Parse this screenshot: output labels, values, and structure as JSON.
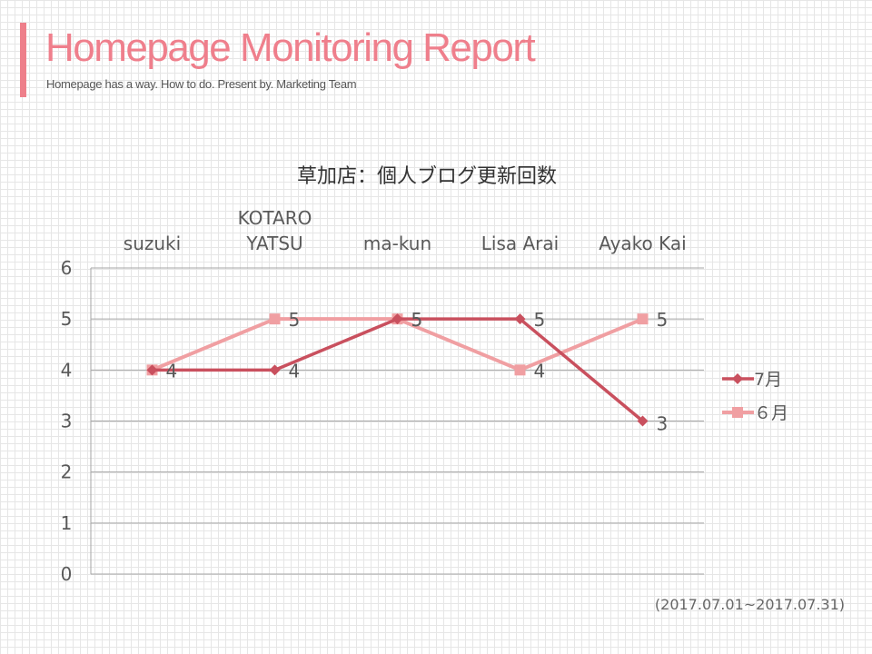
{
  "header": {
    "title": "Homepage Monitoring Report",
    "subtitle": "Homepage has a way. How to do. Present by. Marketing Team"
  },
  "footer": {
    "date_range": "(2017.07.01~2017.07.31)"
  },
  "colors": {
    "accent": "#ee7f8a",
    "series_7": "#c9505e",
    "series_6": "#f09fa2"
  },
  "chart_data": {
    "type": "line",
    "title": "草加店：個人ブログ更新回数",
    "categories": [
      "suzuki",
      "KOTARO YATSU",
      "ma-kun",
      "Lisa Arai",
      "Ayako Kai"
    ],
    "category_lines": [
      [
        "suzuki"
      ],
      [
        "KOTARO",
        "YATSU"
      ],
      [
        "ma-kun"
      ],
      [
        "Lisa Arai"
      ],
      [
        "Ayako Kai"
      ]
    ],
    "x_axis_position": "top",
    "ylim": [
      0,
      6
    ],
    "yticks": [
      "0",
      "1",
      "2",
      "3",
      "4",
      "5",
      "6"
    ],
    "grid": true,
    "legend": "right",
    "series": [
      {
        "name": "7月",
        "values": [
          4,
          4,
          5,
          5,
          3
        ],
        "color": "#c9505e",
        "marker": "diamond",
        "labels": [
          "4",
          "4",
          "5",
          "5",
          "3"
        ]
      },
      {
        "name": "６月",
        "values": [
          4,
          5,
          5,
          4,
          5
        ],
        "color": "#f09fa2",
        "marker": "square",
        "labels": [
          "",
          "5",
          "5",
          "4",
          "5"
        ]
      }
    ]
  }
}
